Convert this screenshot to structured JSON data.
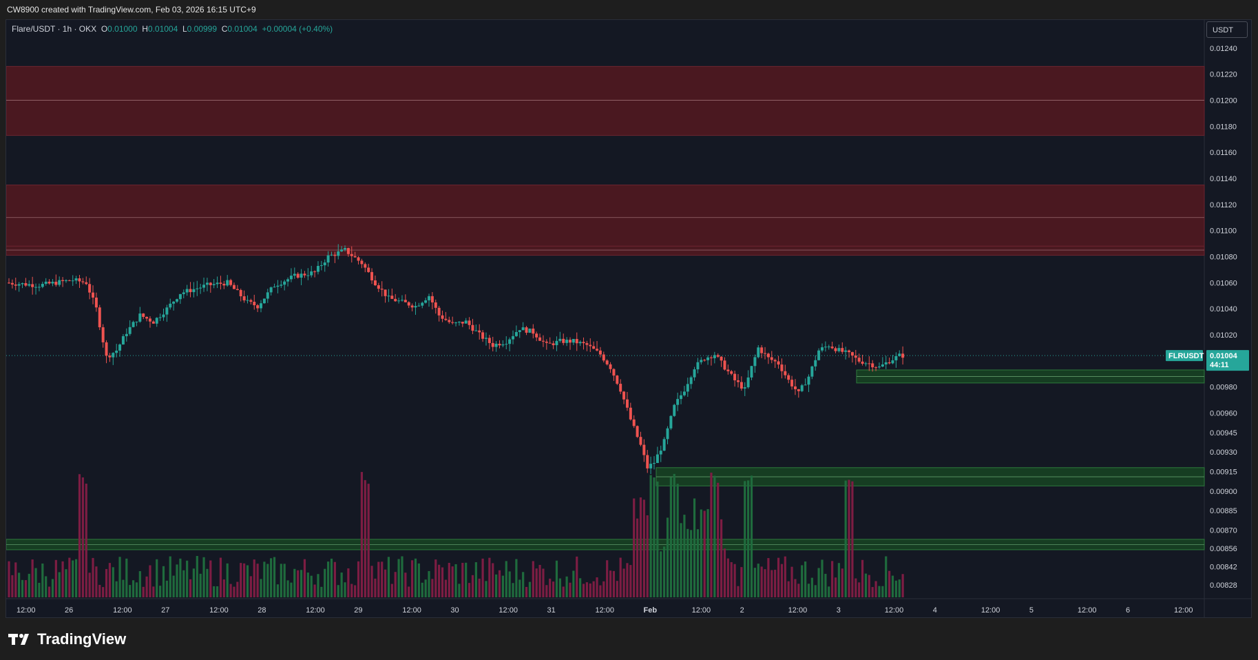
{
  "header": {
    "caption": "CW8900 created with TradingView.com, Feb 03, 2026 16:15 UTC+9"
  },
  "legend": {
    "symbol": "Flare/USDT · 1h · OKX",
    "o_label": "O",
    "o_value": "0.01000",
    "h_label": "H",
    "h_value": "0.01004",
    "l_label": "L",
    "l_value": "0.00999",
    "c_label": "C",
    "c_value": "0.01004",
    "change": "+0.00004 (+0.40%)"
  },
  "price_axis": {
    "unit": "USDT",
    "ticks": [
      "0.01240",
      "0.01220",
      "0.01200",
      "0.01180",
      "0.01160",
      "0.01140",
      "0.01120",
      "0.01100",
      "0.01080",
      "0.01060",
      "0.01040",
      "0.01020",
      "0.00980",
      "0.00960",
      "0.00945",
      "0.00930",
      "0.00915",
      "0.00900",
      "0.00885",
      "0.00870",
      "0.00856",
      "0.00842",
      "0.00828"
    ]
  },
  "price_label": {
    "ticker": "FLRUSDT",
    "price": "0.01004",
    "countdown": "44:11"
  },
  "time_axis": {
    "labels": [
      "12:00",
      "26",
      "12:00",
      "27",
      "12:00",
      "28",
      "12:00",
      "29",
      "12:00",
      "30",
      "12:00",
      "31",
      "12:00",
      "Feb",
      "12:00",
      "2",
      "12:00",
      "3",
      "12:00",
      "4",
      "12:00",
      "5",
      "12:00",
      "6",
      "12:00"
    ]
  },
  "colors": {
    "up": "#26a69a",
    "down": "#ef5350",
    "up_volume": "#1f6b3d",
    "down_volume": "#7d1d43",
    "resistance_zone": "#4a1820",
    "support_zone": "#163d22",
    "price_badge": "#26a69a"
  },
  "chart_data": {
    "type": "candlestick",
    "timeframe": "1h",
    "exchange": "OKX",
    "pair": "Flare/USDT",
    "ylim": [
      0.00828,
      0.0125
    ],
    "current_price": 0.01004,
    "resistance_zones": [
      {
        "low": 0.01173,
        "high": 0.01226,
        "mid": 0.012
      },
      {
        "low": 0.01088,
        "high": 0.01135,
        "mid": 0.0111
      },
      {
        "low": 0.01081,
        "high": 0.01088,
        "mid": 0.01085
      }
    ],
    "support_zones": [
      {
        "low": 0.00983,
        "high": 0.00993,
        "mid": 0.00988
      },
      {
        "low": 0.00904,
        "high": 0.00918,
        "mid": 0.00911
      },
      {
        "low": 0.00855,
        "high": 0.00863,
        "mid": 0.00859
      }
    ],
    "price_path": [
      [
        0,
        0.0106
      ],
      [
        10,
        0.01058
      ],
      [
        20,
        0.01062
      ],
      [
        24,
        0.0106
      ],
      [
        27,
        0.0104
      ],
      [
        30,
        0.01003
      ],
      [
        33,
        0.01008
      ],
      [
        36,
        0.01022
      ],
      [
        40,
        0.01035
      ],
      [
        44,
        0.0103
      ],
      [
        48,
        0.0104
      ],
      [
        52,
        0.01052
      ],
      [
        56,
        0.01055
      ],
      [
        60,
        0.01058
      ],
      [
        66,
        0.0106
      ],
      [
        72,
        0.01045
      ],
      [
        75,
        0.01042
      ],
      [
        80,
        0.01058
      ],
      [
        86,
        0.01065
      ],
      [
        92,
        0.01068
      ],
      [
        96,
        0.0108
      ],
      [
        101,
        0.01085
      ],
      [
        106,
        0.01075
      ],
      [
        110,
        0.0106
      ],
      [
        114,
        0.01048
      ],
      [
        118,
        0.01045
      ],
      [
        122,
        0.01042
      ],
      [
        126,
        0.0105
      ],
      [
        129,
        0.01035
      ],
      [
        133,
        0.01028
      ],
      [
        137,
        0.0103
      ],
      [
        141,
        0.0102
      ],
      [
        145,
        0.01012
      ],
      [
        149,
        0.01015
      ],
      [
        153,
        0.01025
      ],
      [
        157,
        0.01022
      ],
      [
        161,
        0.01012
      ],
      [
        165,
        0.01015
      ],
      [
        169,
        0.01015
      ],
      [
        173,
        0.01012
      ],
      [
        177,
        0.01005
      ],
      [
        180,
        0.00995
      ],
      [
        183,
        0.00978
      ],
      [
        186,
        0.00955
      ],
      [
        189,
        0.00935
      ],
      [
        191,
        0.00918
      ],
      [
        193,
        0.00922
      ],
      [
        196,
        0.00938
      ],
      [
        199,
        0.00965
      ],
      [
        202,
        0.00978
      ],
      [
        205,
        0.00995
      ],
      [
        208,
        0.01002
      ],
      [
        211,
        0.01005
      ],
      [
        214,
        0.00995
      ],
      [
        217,
        0.00985
      ],
      [
        220,
        0.00978
      ],
      [
        222,
        0.00995
      ],
      [
        224,
        0.0101
      ],
      [
        227,
        0.01002
      ],
      [
        230,
        0.00998
      ],
      [
        233,
        0.00985
      ],
      [
        236,
        0.00975
      ],
      [
        239,
        0.00988
      ],
      [
        242,
        0.01008
      ],
      [
        245,
        0.01012
      ],
      [
        248,
        0.01008
      ],
      [
        251,
        0.01005
      ],
      [
        254,
        0.01
      ],
      [
        257,
        0.00998
      ],
      [
        260,
        0.00995
      ],
      [
        263,
        0.01
      ],
      [
        266,
        0.01004
      ]
    ],
    "volume": {
      "spike_positions": [
        22,
        106,
        192,
        198,
        210,
        220,
        250
      ],
      "relative_scale": "volume bars along bottom of chart, tallest spikes near Jan 26, Jan 29 and Feb 1-2"
    }
  }
}
